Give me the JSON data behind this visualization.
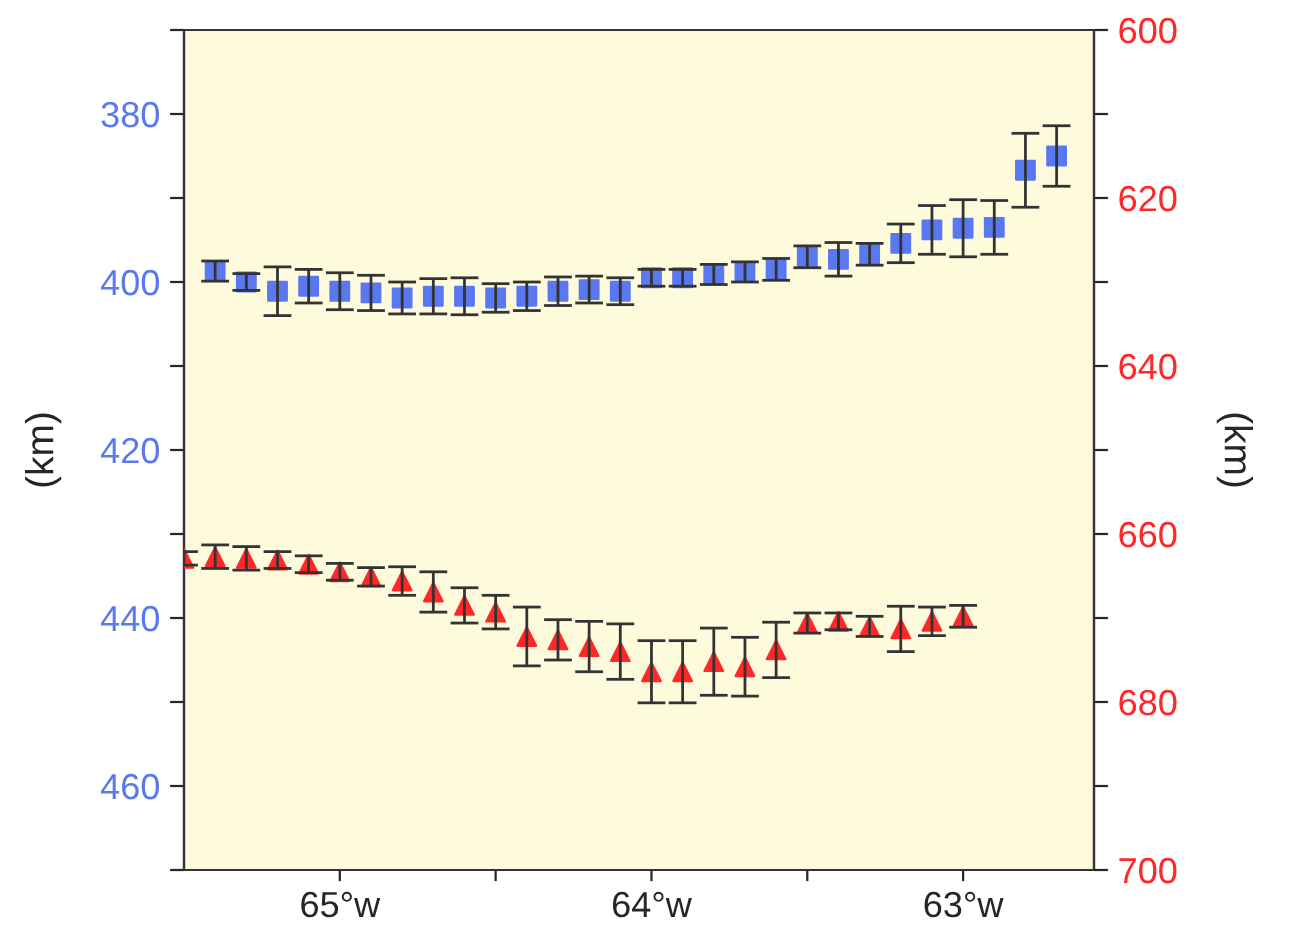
{
  "chart_data": {
    "type": "scatter",
    "ylabel": "(km)",
    "y2label": "(km)",
    "xlim": [
      -65.5,
      -62.58
    ],
    "xticks": [
      {
        "value": -65,
        "label": "65°w"
      },
      {
        "value": -64.5,
        "label": null
      },
      {
        "value": -64,
        "label": "64°w"
      },
      {
        "value": -63.5,
        "label": null
      },
      {
        "value": -63,
        "label": "63°w"
      }
    ],
    "ylim": [
      470,
      370
    ],
    "yticks": [
      {
        "value": 370,
        "label": null
      },
      380,
      {
        "value": 390,
        "label": null
      },
      400,
      {
        "value": 410,
        "label": null
      },
      420,
      {
        "value": 430,
        "label": null
      },
      440,
      {
        "value": 450,
        "label": null
      },
      460,
      {
        "value": 470,
        "label": null
      }
    ],
    "y2lim": [
      700,
      600
    ],
    "y2ticks": [
      600,
      {
        "value": 610,
        "label": null
      },
      620,
      {
        "value": 630,
        "label": null
      },
      640,
      {
        "value": 650,
        "label": null
      },
      660,
      {
        "value": 670,
        "label": null
      },
      680,
      {
        "value": 690,
        "label": null
      },
      700
    ],
    "grid": false,
    "legend": false,
    "series": [
      {
        "color": "#5a78f0",
        "marker": "square",
        "x": [
          -65.4,
          -65.3,
          -65.2,
          -65.1,
          -65.0,
          -64.9,
          -64.8,
          -64.7,
          -64.6,
          -64.5,
          -64.4,
          -64.3,
          -64.2,
          -64.1,
          -64.0,
          -63.9,
          -63.8,
          -63.7,
          -63.6,
          -63.5,
          -63.4,
          -63.3,
          -63.2,
          -63.1,
          -63.0,
          -62.9,
          -62.8,
          -62.7
        ],
        "values": [
          398.7,
          400.0,
          401.1,
          400.5,
          401.1,
          401.3,
          401.9,
          401.7,
          401.7,
          401.9,
          401.7,
          401.1,
          400.9,
          401.1,
          399.5,
          399.5,
          399.1,
          398.8,
          398.5,
          397.0,
          397.3,
          396.7,
          395.4,
          393.8,
          393.6,
          393.5,
          386.7,
          385.0
        ],
        "errors": [
          1.2,
          1.0,
          2.9,
          2.0,
          2.2,
          2.1,
          1.9,
          2.1,
          2.2,
          1.7,
          1.7,
          1.7,
          1.6,
          1.6,
          1.0,
          1.0,
          1.2,
          1.2,
          1.3,
          1.3,
          2.0,
          1.3,
          2.3,
          2.9,
          3.4,
          3.2,
          4.4,
          3.6
        ]
      },
      {
        "color": "#ff2828",
        "marker": "triangle",
        "axis": "y2",
        "x": [
          -65.5,
          -65.4,
          -65.3,
          -65.2,
          -65.1,
          -65.0,
          -64.9,
          -64.8,
          -64.7,
          -64.6,
          -64.5,
          -64.4,
          -64.3,
          -64.2,
          -64.1,
          -64.0,
          -63.9,
          -63.8,
          -63.7,
          -63.6,
          -63.5,
          -63.4,
          -63.3,
          -63.2,
          -63.1,
          -63.0
        ],
        "values": [
          662.9,
          662.7,
          662.9,
          663.1,
          663.6,
          664.5,
          665.1,
          665.6,
          666.9,
          668.5,
          669.3,
          672.2,
          672.6,
          673.4,
          674.0,
          676.4,
          676.4,
          675.2,
          675.8,
          673.8,
          670.6,
          670.4,
          671.0,
          671.3,
          670.4,
          669.8
        ],
        "errors": [
          0.8,
          1.4,
          1.4,
          1.0,
          1.0,
          1.0,
          1.1,
          1.7,
          2.4,
          2.1,
          2.0,
          3.5,
          2.4,
          3.0,
          3.3,
          3.7,
          3.7,
          4.0,
          3.5,
          3.3,
          1.2,
          1.0,
          1.2,
          2.7,
          1.7,
          1.3
        ]
      }
    ]
  }
}
